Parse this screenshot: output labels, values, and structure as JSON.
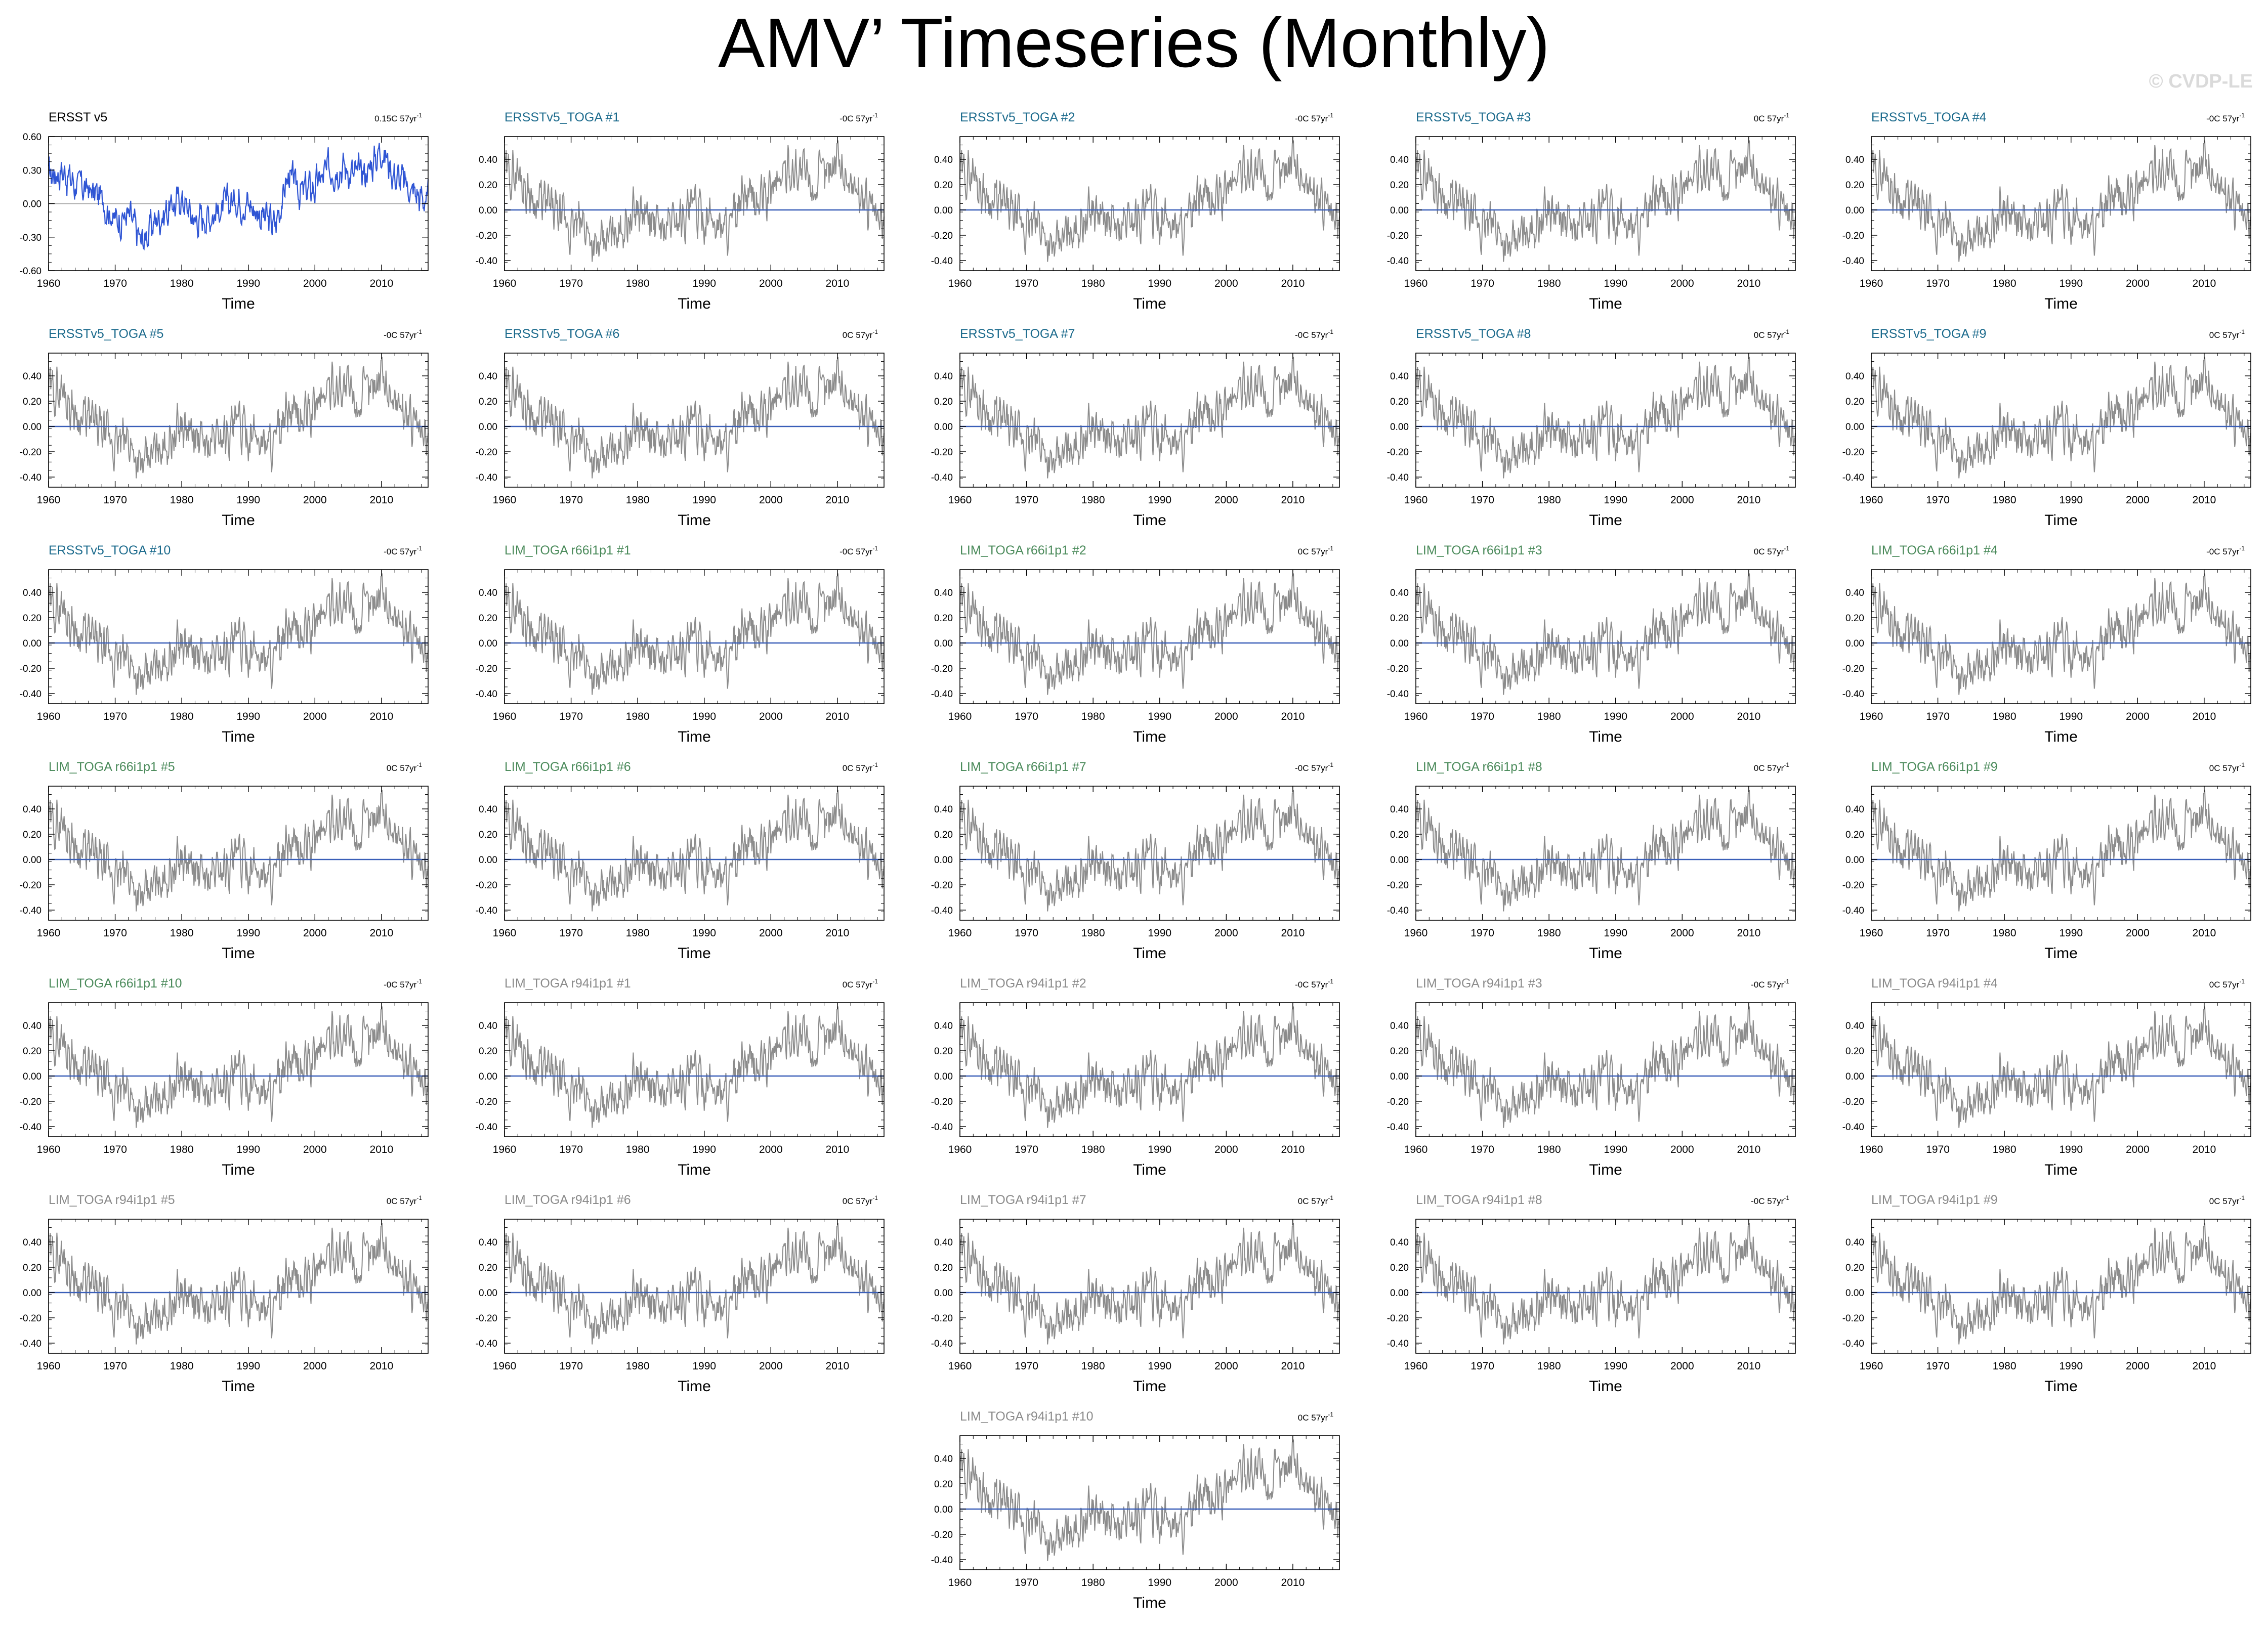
{
  "page": {
    "title": "AMV’ Timeseries (Monthly)",
    "watermark": "© CVDP-LE"
  },
  "colors": {
    "obs_line": "#2f55d4",
    "member_line": "#8c8c8c",
    "ensemble_mean": "#3a5fb8",
    "title_ersst": "#1b6a8c",
    "title_lim66": "#4a8a5a",
    "title_lim94": "#8a8a8a",
    "title_obs": "#000000"
  },
  "chart_data": {
    "type": "line",
    "xlabel": "Time",
    "xlim": [
      1960,
      2017
    ],
    "xticks": [
      "1960",
      "1970",
      "1980",
      "1990",
      "2000",
      "2010"
    ],
    "obs_ylim": [
      -0.6,
      0.6
    ],
    "obs_yticks": [
      "0.60",
      "0.30",
      "0.00",
      "-0.30",
      "-0.60"
    ],
    "member_ylim": [
      -0.48,
      0.58
    ],
    "member_yticks": [
      "0.40",
      "0.20",
      "0.00",
      "-0.20",
      "-0.40"
    ],
    "anchor_years": [
      1960,
      1962,
      1964,
      1966,
      1968,
      1970,
      1972,
      1974,
      1976,
      1978,
      1980,
      1982,
      1984,
      1986,
      1988,
      1990,
      1992,
      1994,
      1996,
      1998,
      2000,
      2002,
      2004,
      2006,
      2008,
      2010,
      2012,
      2014,
      2016
    ],
    "obs_anchor_values": [
      0.25,
      0.3,
      0.18,
      0.12,
      0.05,
      -0.15,
      -0.1,
      -0.35,
      -0.15,
      -0.05,
      0.05,
      -0.15,
      -0.1,
      -0.05,
      0.05,
      0.0,
      -0.1,
      -0.2,
      0.25,
      0.1,
      0.15,
      0.3,
      0.35,
      0.25,
      0.3,
      0.5,
      0.25,
      0.15,
      0.05
    ],
    "member_anchor_values": [
      0.28,
      0.3,
      0.1,
      0.05,
      -0.05,
      -0.15,
      -0.1,
      -0.35,
      -0.2,
      -0.1,
      0.0,
      -0.1,
      -0.15,
      -0.05,
      0.0,
      -0.05,
      -0.1,
      -0.15,
      0.1,
      0.05,
      0.15,
      0.3,
      0.35,
      0.2,
      0.25,
      0.45,
      0.2,
      0.1,
      -0.1
    ],
    "panels": [
      {
        "title": "ERSST v5",
        "trend": "0.15C 57yr",
        "group": "obs"
      },
      {
        "title": "ERSSTv5_TOGA #1",
        "trend": "-0C 57yr",
        "group": "ersst"
      },
      {
        "title": "ERSSTv5_TOGA #2",
        "trend": "-0C 57yr",
        "group": "ersst"
      },
      {
        "title": "ERSSTv5_TOGA #3",
        "trend": "0C 57yr",
        "group": "ersst"
      },
      {
        "title": "ERSSTv5_TOGA #4",
        "trend": "-0C 57yr",
        "group": "ersst"
      },
      {
        "title": "ERSSTv5_TOGA #5",
        "trend": "-0C 57yr",
        "group": "ersst"
      },
      {
        "title": "ERSSTv5_TOGA #6",
        "trend": "0C 57yr",
        "group": "ersst"
      },
      {
        "title": "ERSSTv5_TOGA #7",
        "trend": "-0C 57yr",
        "group": "ersst"
      },
      {
        "title": "ERSSTv5_TOGA #8",
        "trend": "0C 57yr",
        "group": "ersst"
      },
      {
        "title": "ERSSTv5_TOGA #9",
        "trend": "0C 57yr",
        "group": "ersst"
      },
      {
        "title": "ERSSTv5_TOGA #10",
        "trend": "-0C 57yr",
        "group": "ersst"
      },
      {
        "title": "LIM_TOGA r66i1p1 #1",
        "trend": "-0C 57yr",
        "group": "lim66"
      },
      {
        "title": "LIM_TOGA r66i1p1 #2",
        "trend": "0C 57yr",
        "group": "lim66"
      },
      {
        "title": "LIM_TOGA r66i1p1 #3",
        "trend": "0C 57yr",
        "group": "lim66"
      },
      {
        "title": "LIM_TOGA r66i1p1 #4",
        "trend": "-0C 57yr",
        "group": "lim66"
      },
      {
        "title": "LIM_TOGA r66i1p1 #5",
        "trend": "0C 57yr",
        "group": "lim66"
      },
      {
        "title": "LIM_TOGA r66i1p1 #6",
        "trend": "0C 57yr",
        "group": "lim66"
      },
      {
        "title": "LIM_TOGA r66i1p1 #7",
        "trend": "-0C 57yr",
        "group": "lim66"
      },
      {
        "title": "LIM_TOGA r66i1p1 #8",
        "trend": "0C 57yr",
        "group": "lim66"
      },
      {
        "title": "LIM_TOGA r66i1p1 #9",
        "trend": "0C 57yr",
        "group": "lim66"
      },
      {
        "title": "LIM_TOGA r66i1p1 #10",
        "trend": "-0C 57yr",
        "group": "lim66"
      },
      {
        "title": "LIM_TOGA r94i1p1 #1",
        "trend": "0C 57yr",
        "group": "lim94"
      },
      {
        "title": "LIM_TOGA r94i1p1 #2",
        "trend": "-0C 57yr",
        "group": "lim94"
      },
      {
        "title": "LIM_TOGA r94i1p1 #3",
        "trend": "-0C 57yr",
        "group": "lim94"
      },
      {
        "title": "LIM_TOGA r94i1p1 #4",
        "trend": "0C 57yr",
        "group": "lim94"
      },
      {
        "title": "LIM_TOGA r94i1p1 #5",
        "trend": "0C 57yr",
        "group": "lim94"
      },
      {
        "title": "LIM_TOGA r94i1p1 #6",
        "trend": "0C 57yr",
        "group": "lim94"
      },
      {
        "title": "LIM_TOGA r94i1p1 #7",
        "trend": "0C 57yr",
        "group": "lim94"
      },
      {
        "title": "LIM_TOGA r94i1p1 #8",
        "trend": "-0C 57yr",
        "group": "lim94"
      },
      {
        "title": "LIM_TOGA r94i1p1 #9",
        "trend": "0C 57yr",
        "group": "lim94"
      },
      {
        "title": "LIM_TOGA r94i1p1 #10",
        "trend": "0C 57yr",
        "group": "lim94"
      }
    ]
  }
}
